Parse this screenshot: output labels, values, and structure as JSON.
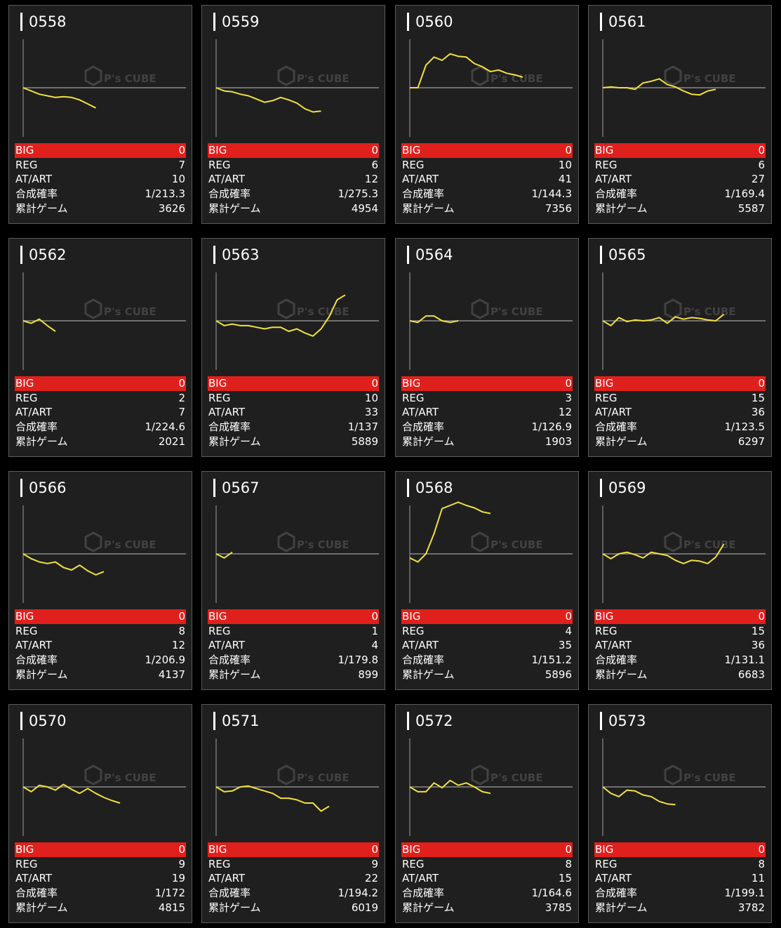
{
  "labels": {
    "big": "BIG",
    "reg": "REG",
    "atart": "AT/ART",
    "rate": "合成確率",
    "games": "累計ゲーム"
  },
  "colors": {
    "big_bar": "#e0201c",
    "line": "#f1e040",
    "baseline": "#8a8a8a",
    "card_bg": "#1f1f1f"
  },
  "watermark": {
    "brand": "P's CUBE",
    "icon": "cube-logo-icon"
  },
  "machines": [
    {
      "id": "0558",
      "big": "0",
      "reg": "7",
      "atart": "10",
      "rate": "1/213.3",
      "games": "3626"
    },
    {
      "id": "0559",
      "big": "0",
      "reg": "6",
      "atart": "12",
      "rate": "1/275.3",
      "games": "4954"
    },
    {
      "id": "0560",
      "big": "0",
      "reg": "10",
      "atart": "41",
      "rate": "1/144.3",
      "games": "7356"
    },
    {
      "id": "0561",
      "big": "0",
      "reg": "6",
      "atart": "27",
      "rate": "1/169.4",
      "games": "5587"
    },
    {
      "id": "0562",
      "big": "0",
      "reg": "2",
      "atart": "7",
      "rate": "1/224.6",
      "games": "2021"
    },
    {
      "id": "0563",
      "big": "0",
      "reg": "10",
      "atart": "33",
      "rate": "1/137",
      "games": "5889"
    },
    {
      "id": "0564",
      "big": "0",
      "reg": "3",
      "atart": "12",
      "rate": "1/126.9",
      "games": "1903"
    },
    {
      "id": "0565",
      "big": "0",
      "reg": "15",
      "atart": "36",
      "rate": "1/123.5",
      "games": "6297"
    },
    {
      "id": "0566",
      "big": "0",
      "reg": "8",
      "atart": "12",
      "rate": "1/206.9",
      "games": "4137"
    },
    {
      "id": "0567",
      "big": "0",
      "reg": "1",
      "atart": "4",
      "rate": "1/179.8",
      "games": "899"
    },
    {
      "id": "0568",
      "big": "0",
      "reg": "4",
      "atart": "35",
      "rate": "1/151.2",
      "games": "5896"
    },
    {
      "id": "0569",
      "big": "0",
      "reg": "15",
      "atart": "36",
      "rate": "1/131.1",
      "games": "6683"
    },
    {
      "id": "0570",
      "big": "0",
      "reg": "9",
      "atart": "19",
      "rate": "1/172",
      "games": "4815"
    },
    {
      "id": "0571",
      "big": "0",
      "reg": "9",
      "atart": "22",
      "rate": "1/194.2",
      "games": "6019"
    },
    {
      "id": "0572",
      "big": "0",
      "reg": "8",
      "atart": "15",
      "rate": "1/164.6",
      "games": "3785"
    },
    {
      "id": "0573",
      "big": "0",
      "reg": "8",
      "atart": "11",
      "rate": "1/199.1",
      "games": "3782"
    }
  ],
  "chart_data": [
    {
      "type": "line",
      "series": [
        {
          "values": [
            0,
            -4,
            -8,
            -10,
            -12,
            -11,
            -12,
            -15,
            -20,
            -25
          ]
        }
      ]
    },
    {
      "type": "line",
      "series": [
        {
          "values": [
            0,
            -4,
            -5,
            -8,
            -10,
            -14,
            -18,
            -16,
            -12,
            -15,
            -19,
            -26,
            -30,
            -29
          ]
        }
      ]
    },
    {
      "type": "line",
      "series": [
        {
          "values": [
            0,
            0,
            28,
            38,
            34,
            42,
            39,
            38,
            30,
            26,
            20,
            22,
            18,
            16,
            13
          ]
        }
      ]
    },
    {
      "type": "line",
      "series": [
        {
          "values": [
            0,
            1,
            0,
            0,
            -2,
            6,
            8,
            11,
            4,
            1,
            -4,
            -8,
            -9,
            -4,
            -2
          ]
        }
      ]
    },
    {
      "type": "line",
      "series": [
        {
          "values": [
            0,
            -3,
            2,
            -6,
            -13
          ]
        }
      ]
    },
    {
      "type": "line",
      "series": [
        {
          "values": [
            0,
            -6,
            -4,
            -6,
            -6,
            -8,
            -10,
            -8,
            -8,
            -13,
            -10,
            -15,
            -19,
            -10,
            5,
            26,
            32
          ]
        }
      ]
    },
    {
      "type": "line",
      "series": [
        {
          "values": [
            0,
            -2,
            6,
            6,
            0,
            -2,
            0
          ]
        }
      ]
    },
    {
      "type": "line",
      "series": [
        {
          "values": [
            0,
            -6,
            4,
            -1,
            1,
            0,
            1,
            4,
            -3,
            5,
            2,
            4,
            3,
            1,
            0,
            8
          ]
        }
      ]
    },
    {
      "type": "line",
      "series": [
        {
          "values": [
            0,
            -6,
            -10,
            -12,
            -10,
            -17,
            -20,
            -14,
            -21,
            -26,
            -22
          ]
        }
      ]
    },
    {
      "type": "line",
      "series": [
        {
          "values": [
            0,
            -5,
            2
          ]
        }
      ]
    },
    {
      "type": "line",
      "series": [
        {
          "values": [
            -5,
            -10,
            0,
            25,
            56,
            60,
            64,
            60,
            57,
            52,
            50
          ]
        }
      ]
    },
    {
      "type": "line",
      "series": [
        {
          "values": [
            0,
            -6,
            0,
            2,
            -1,
            -5,
            2,
            0,
            -2,
            -8,
            -12,
            -8,
            -9,
            -12,
            -4,
            12
          ]
        }
      ]
    },
    {
      "type": "line",
      "series": [
        {
          "values": [
            0,
            -6,
            2,
            0,
            -4,
            3,
            -3,
            -8,
            -2,
            -8,
            -13,
            -17,
            -20
          ]
        }
      ]
    },
    {
      "type": "line",
      "series": [
        {
          "values": [
            0,
            -6,
            -5,
            0,
            1,
            -2,
            -5,
            -8,
            -14,
            -14,
            -16,
            -20,
            -20,
            -30,
            -24
          ]
        }
      ]
    },
    {
      "type": "line",
      "series": [
        {
          "values": [
            0,
            -6,
            -6,
            5,
            -1,
            8,
            2,
            5,
            0,
            -6,
            -8
          ]
        }
      ]
    },
    {
      "type": "line",
      "series": [
        {
          "values": [
            0,
            -8,
            -12,
            -4,
            -5,
            -10,
            -12,
            -18,
            -21,
            -22
          ]
        }
      ]
    }
  ]
}
